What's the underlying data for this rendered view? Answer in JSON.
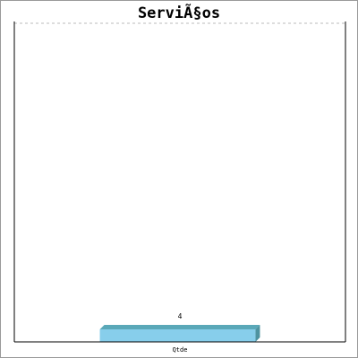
{
  "chart_data": {
    "type": "bar",
    "title": "ServiÃ§os",
    "categories": [
      "Qtde"
    ],
    "values": [
      4
    ],
    "value_labels": [
      "4"
    ],
    "xlabel": "",
    "ylabel": "",
    "ylim": [
      0,
      4
    ],
    "grid": "top dashed line only",
    "legend": "none",
    "colors": {
      "bar_front": "#87ceeb",
      "bar_top": "#5aa8b8",
      "bar_side": "#4e93a0",
      "axis": "#000000",
      "grid": "#bbbbbb",
      "text": "#000000"
    }
  }
}
